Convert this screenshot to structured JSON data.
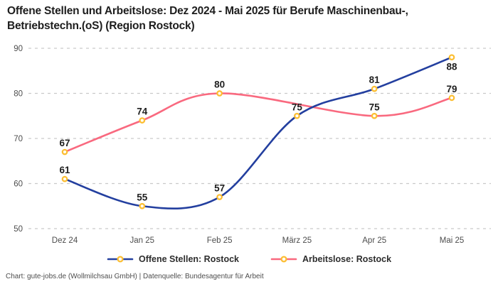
{
  "title": {
    "line1": "Offene Stellen und Arbeitslose: Dez 2024 - Mai 2025 für Berufe Maschinenbau-,",
    "line2": "Betriebstechn.(oS) (Region Rostock)"
  },
  "chart_data": {
    "type": "line",
    "categories": [
      "Dez 24",
      "Jan 25",
      "Feb 25",
      "März 25",
      "Apr 25",
      "Mai 25"
    ],
    "series": [
      {
        "name": "Offene Stellen: Rostock",
        "color": "#233f9f",
        "values": [
          61,
          55,
          57,
          75,
          81,
          88
        ],
        "label_positions": [
          "above",
          "above",
          "above",
          "above",
          "above",
          "below"
        ]
      },
      {
        "name": "Arbeitslose: Rostock",
        "color": "#f9697f",
        "values": [
          67,
          74,
          80,
          null,
          75,
          79
        ],
        "label_positions": [
          "above",
          "above",
          "above",
          null,
          "above",
          "above"
        ]
      }
    ],
    "y_axis": {
      "min": 50,
      "max": 90,
      "ticks": [
        90,
        80,
        70,
        60,
        50
      ]
    },
    "x_axis_label_row": [
      "Dez 24",
      "Jan 25",
      "Feb 25",
      "März 25",
      "Apr 25",
      "Mai 25"
    ],
    "grid": "horizontal-dashed",
    "grid_color": "#c9c9c9",
    "marker": {
      "fill": "#ffffff",
      "stroke": "#fcbe32"
    },
    "legend_position": "bottom-center",
    "line_style": "smooth-spline"
  },
  "footer": "Chart: gute-jobs.de (Wollmilchsau GmbH) | Datenquelle: Bundesagentur für Arbeit"
}
